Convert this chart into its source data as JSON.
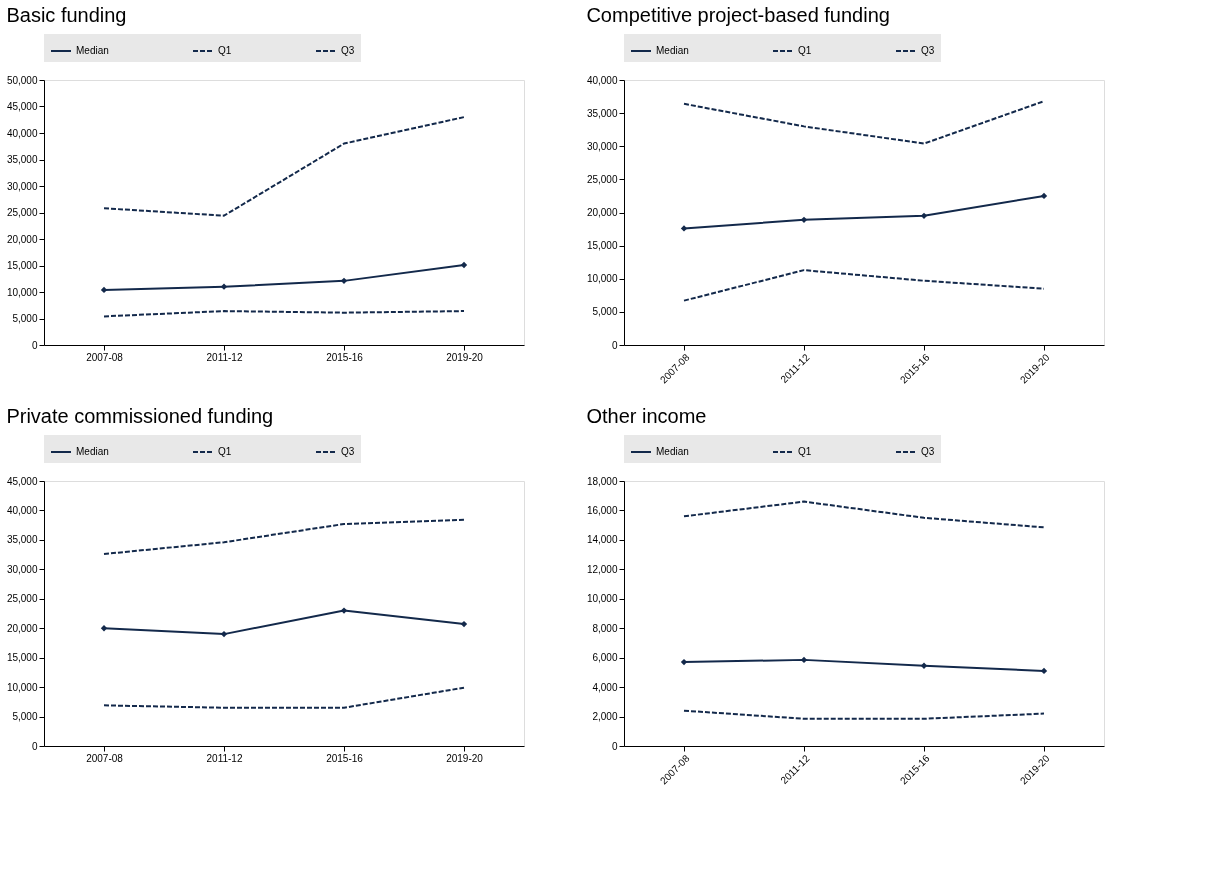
{
  "chart_data": [
    {
      "type": "line",
      "title": "Basic funding",
      "categories": [
        "2007-08",
        "2011-12",
        "2015-16",
        "2019-20"
      ],
      "ylim": [
        0,
        50000
      ],
      "yticks": [
        0,
        {
          "value": 5000,
          "label": "5,000"
        },
        {
          "value": 10000,
          "label": "10,000"
        },
        {
          "value": 15000,
          "label": "15,000"
        },
        {
          "value": 20000,
          "label": "20,000"
        },
        {
          "value": 25000,
          "label": "25,000"
        },
        {
          "value": 30000,
          "label": "30,000"
        },
        {
          "value": 35000,
          "label": "35,000"
        },
        {
          "value": 40000,
          "label": "40,000"
        },
        {
          "value": 45000,
          "label": "45,000"
        },
        {
          "value": 50000,
          "label": "50,000"
        }
      ],
      "grid": false,
      "legend": "top",
      "series": [
        {
          "name": "Median",
          "color": "#13294b",
          "line_style": "solid",
          "marker": "diamond",
          "values": [
            10400,
            11000,
            12100,
            15100
          ]
        },
        {
          "name": "Q1",
          "color": "#13294b",
          "line_style": "dashed",
          "marker": "none",
          "values": [
            5400,
            6400,
            6100,
            6400
          ]
        },
        {
          "name": "Q3",
          "color": "#13294b",
          "line_style": "dashed",
          "marker": "none",
          "values": [
            25800,
            24400,
            38000,
            43000
          ]
        }
      ]
    },
    {
      "type": "line",
      "title": "Competitive project-based funding",
      "categories": [
        "2007-08",
        "2011-12",
        "2015-16",
        "2019-20"
      ],
      "ylim": [
        0,
        40000
      ],
      "yticks": [
        0,
        {
          "value": 5000,
          "label": "5,000"
        },
        {
          "value": 10000,
          "label": "10,000"
        },
        {
          "value": 15000,
          "label": "15,000"
        },
        {
          "value": 20000,
          "label": "20,000"
        },
        {
          "value": 25000,
          "label": "25,000"
        },
        {
          "value": 30000,
          "label": "30,000"
        },
        {
          "value": 35000,
          "label": "35,000"
        },
        {
          "value": 40000,
          "label": "40,000"
        }
      ],
      "grid": false,
      "legend": "top",
      "series": [
        {
          "name": "Median",
          "color": "#13294b",
          "line_style": "solid",
          "marker": "diamond",
          "values": [
            17600,
            18900,
            19500,
            22500
          ]
        },
        {
          "name": "Q1",
          "color": "#13294b",
          "line_style": "dashed",
          "marker": "none",
          "values": [
            6700,
            11300,
            9700,
            8500
          ]
        },
        {
          "name": "Q3",
          "color": "#13294b",
          "line_style": "dashed",
          "marker": "none",
          "values": [
            36400,
            33000,
            30400,
            36800
          ]
        }
      ]
    },
    {
      "type": "line",
      "title": "Private commissioned funding",
      "categories": [
        "2007-08",
        "2011-12",
        "2015-16",
        "2019-20"
      ],
      "ylim": [
        0,
        45000
      ],
      "yticks": [
        0,
        {
          "value": 5000,
          "label": "5,000"
        },
        {
          "value": 10000,
          "label": "10,000"
        },
        {
          "value": 15000,
          "label": "15,000"
        },
        {
          "value": 20000,
          "label": "20,000"
        },
        {
          "value": 25000,
          "label": "25,000"
        },
        {
          "value": 30000,
          "label": "30,000"
        },
        {
          "value": 35000,
          "label": "35,000"
        },
        {
          "value": 40000,
          "label": "40,000"
        },
        {
          "value": 45000,
          "label": "45,000"
        }
      ],
      "grid": false,
      "legend": "top",
      "series": [
        {
          "name": "Median",
          "color": "#13294b",
          "line_style": "solid",
          "marker": "diamond",
          "values": [
            20000,
            19000,
            23000,
            20700
          ]
        },
        {
          "name": "Q1",
          "color": "#13294b",
          "line_style": "dashed",
          "marker": "none",
          "values": [
            6900,
            6500,
            6500,
            9900
          ]
        },
        {
          "name": "Q3",
          "color": "#13294b",
          "line_style": "dashed",
          "marker": "none",
          "values": [
            32600,
            34600,
            37700,
            38400
          ]
        }
      ]
    },
    {
      "type": "line",
      "title": "Other income",
      "categories": [
        "2007-08",
        "2011-12",
        "2015-16",
        "2019-20"
      ],
      "ylim": [
        0,
        18000
      ],
      "yticks": [
        0,
        {
          "value": 2000,
          "label": "2,000"
        },
        {
          "value": 4000,
          "label": "4,000"
        },
        {
          "value": 6000,
          "label": "6,000"
        },
        {
          "value": 8000,
          "label": "8,000"
        },
        {
          "value": 10000,
          "label": "10,000"
        },
        {
          "value": 12000,
          "label": "12,000"
        },
        {
          "value": 14000,
          "label": "14,000"
        },
        {
          "value": 16000,
          "label": "16,000"
        },
        {
          "value": 18000,
          "label": "18,000"
        }
      ],
      "grid": false,
      "legend": "top",
      "series": [
        {
          "name": "Median",
          "color": "#13294b",
          "line_style": "solid",
          "marker": "diamond",
          "values": [
            5700,
            5850,
            5450,
            5100
          ]
        },
        {
          "name": "Q1",
          "color": "#13294b",
          "line_style": "dashed",
          "marker": "none",
          "values": [
            2400,
            1850,
            1850,
            2200
          ]
        },
        {
          "name": "Q3",
          "color": "#13294b",
          "line_style": "dashed",
          "marker": "none",
          "values": [
            15600,
            16600,
            15500,
            14850
          ]
        }
      ]
    }
  ]
}
